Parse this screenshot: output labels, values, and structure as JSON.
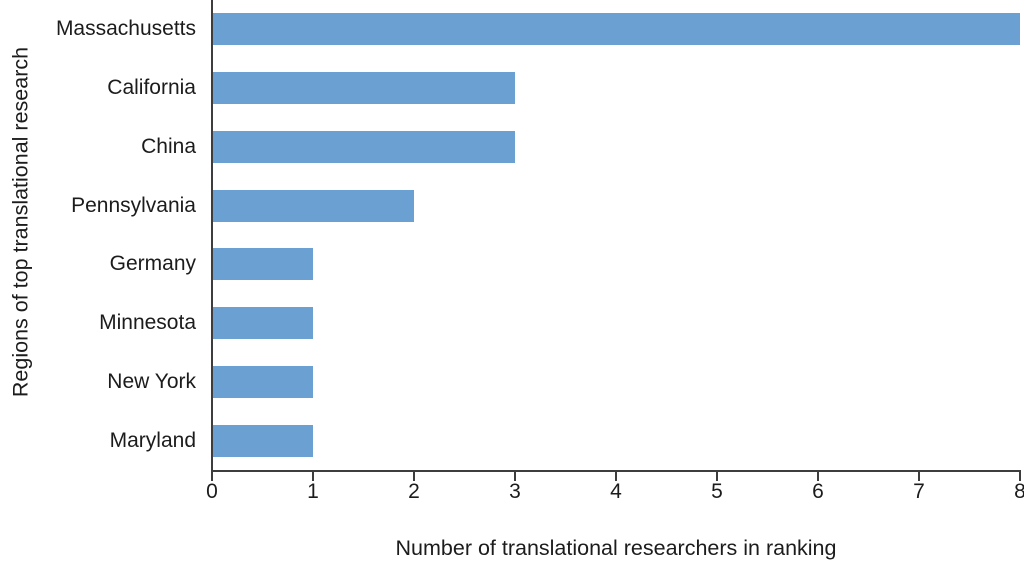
{
  "chart_data": {
    "type": "bar",
    "orientation": "horizontal",
    "title": "",
    "xlabel": "Number of translational researchers in ranking",
    "ylabel": "Regions of top translational research",
    "categories": [
      "Massachusetts",
      "California",
      "China",
      "Pennsylvania",
      "Germany",
      "Minnesota",
      "New York",
      "Maryland"
    ],
    "values": [
      8,
      3,
      3,
      2,
      1,
      1,
      1,
      1
    ],
    "xlim": [
      0,
      8
    ],
    "xticks": [
      0,
      1,
      2,
      3,
      4,
      5,
      6,
      7,
      8
    ],
    "grid": false,
    "legend": false,
    "bar_color": "#6BA0D2",
    "axis_color": "#3d3d3d",
    "text_color": "#1c1c1c",
    "background_color": "#ffffff"
  }
}
